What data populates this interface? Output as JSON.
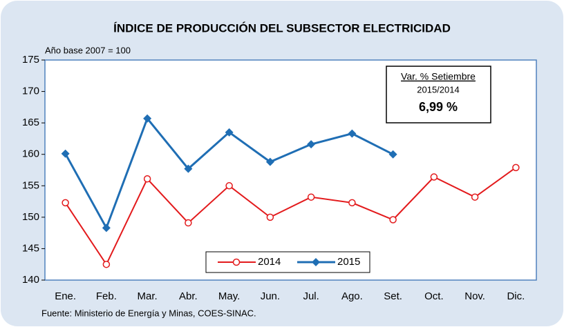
{
  "chart_data": {
    "type": "line",
    "title": "ÍNDICE DE PRODUCCIÓN DEL SUBSECTOR ELECTRICIDAD",
    "subtitle": "Año base  2007  =  100",
    "annotation": {
      "title": "Var. % Setiembre",
      "period": "2015/2014",
      "value": "6,99 %"
    },
    "source": "Fuente: Ministerio de Energía y Minas, COES-SINAC.",
    "categories": [
      "Ene.",
      "Feb.",
      "Mar.",
      "Abr.",
      "May.",
      "Jun.",
      "Jul.",
      "Ago.",
      "Set.",
      "Oct.",
      "Nov.",
      "Dic."
    ],
    "series": [
      {
        "name": "2014",
        "color": "#e31a1c",
        "marker": "circle",
        "values": [
          152.3,
          142.5,
          156.1,
          149.1,
          155.0,
          150.0,
          153.2,
          152.3,
          149.6,
          156.4,
          153.2,
          157.9
        ]
      },
      {
        "name": "2015",
        "color": "#1f6eb4",
        "marker": "diamond",
        "values": [
          160.1,
          148.3,
          165.7,
          157.7,
          163.5,
          158.8,
          161.6,
          163.3,
          160.0,
          null,
          null,
          null
        ]
      }
    ],
    "ylim": [
      140,
      175
    ],
    "yticks": [
      140,
      145,
      150,
      155,
      160,
      165,
      170,
      175
    ],
    "grid": false
  }
}
